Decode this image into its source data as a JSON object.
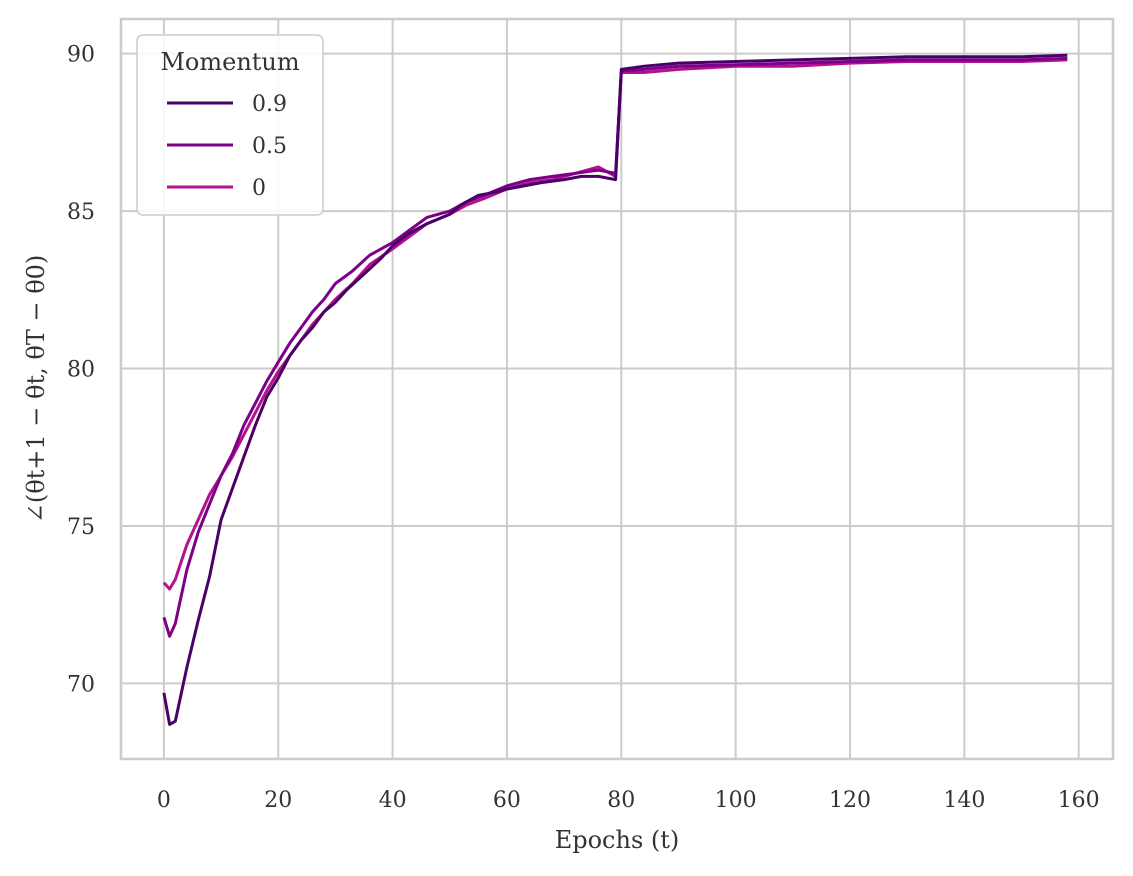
{
  "chart_data": {
    "type": "line",
    "xlabel": "Epochs (t)",
    "ylabel": "∠(θt+1 − θt, θT − θ0)",
    "xlim": [
      -7.5,
      166
    ],
    "ylim": [
      67.6,
      91.1
    ],
    "xticks": [
      0,
      20,
      40,
      60,
      80,
      100,
      120,
      140,
      160
    ],
    "yticks": [
      70,
      75,
      80,
      85,
      90
    ],
    "grid": true,
    "legend": {
      "title": "Momentum",
      "placement": "top-left"
    },
    "series": [
      {
        "name": "0.9",
        "color": "#4b0067",
        "points": [
          [
            0,
            69.7
          ],
          [
            1,
            68.7
          ],
          [
            2,
            68.8
          ],
          [
            4,
            70.5
          ],
          [
            6,
            72.0
          ],
          [
            8,
            73.4
          ],
          [
            10,
            75.2
          ],
          [
            12,
            76.2
          ],
          [
            14,
            77.2
          ],
          [
            16,
            78.2
          ],
          [
            18,
            79.1
          ],
          [
            20,
            79.7
          ],
          [
            22,
            80.4
          ],
          [
            24,
            80.9
          ],
          [
            26,
            81.3
          ],
          [
            28,
            81.8
          ],
          [
            30,
            82.1
          ],
          [
            32,
            82.5
          ],
          [
            35,
            83.0
          ],
          [
            38,
            83.5
          ],
          [
            40,
            83.9
          ],
          [
            43,
            84.3
          ],
          [
            46,
            84.6
          ],
          [
            50,
            84.9
          ],
          [
            52,
            85.2
          ],
          [
            55,
            85.5
          ],
          [
            58,
            85.6
          ],
          [
            60,
            85.7
          ],
          [
            63,
            85.8
          ],
          [
            66,
            85.9
          ],
          [
            70,
            86.0
          ],
          [
            73,
            86.1
          ],
          [
            76,
            86.1
          ],
          [
            79,
            86.0
          ],
          [
            80,
            89.5
          ],
          [
            84,
            89.6
          ],
          [
            90,
            89.7
          ],
          [
            100,
            89.75
          ],
          [
            110,
            89.8
          ],
          [
            120,
            89.85
          ],
          [
            130,
            89.9
          ],
          [
            140,
            89.9
          ],
          [
            150,
            89.9
          ],
          [
            158,
            89.95
          ]
        ]
      },
      {
        "name": "0.5",
        "color": "#7c0088",
        "points": [
          [
            0,
            72.1
          ],
          [
            1,
            71.5
          ],
          [
            2,
            71.9
          ],
          [
            4,
            73.6
          ],
          [
            6,
            74.8
          ],
          [
            8,
            75.7
          ],
          [
            10,
            76.6
          ],
          [
            12,
            77.3
          ],
          [
            14,
            78.2
          ],
          [
            16,
            78.9
          ],
          [
            18,
            79.6
          ],
          [
            20,
            80.2
          ],
          [
            22,
            80.8
          ],
          [
            24,
            81.3
          ],
          [
            26,
            81.8
          ],
          [
            28,
            82.2
          ],
          [
            30,
            82.7
          ],
          [
            33,
            83.1
          ],
          [
            36,
            83.6
          ],
          [
            40,
            84.0
          ],
          [
            43,
            84.4
          ],
          [
            46,
            84.8
          ],
          [
            50,
            85.0
          ],
          [
            53,
            85.3
          ],
          [
            56,
            85.5
          ],
          [
            60,
            85.8
          ],
          [
            64,
            86.0
          ],
          [
            68,
            86.1
          ],
          [
            72,
            86.2
          ],
          [
            76,
            86.3
          ],
          [
            79,
            86.2
          ],
          [
            80,
            89.45
          ],
          [
            84,
            89.5
          ],
          [
            90,
            89.6
          ],
          [
            100,
            89.65
          ],
          [
            110,
            89.7
          ],
          [
            120,
            89.75
          ],
          [
            130,
            89.8
          ],
          [
            140,
            89.8
          ],
          [
            150,
            89.8
          ],
          [
            158,
            89.85
          ]
        ]
      },
      {
        "name": "0",
        "color": "#b4118f",
        "points": [
          [
            0,
            73.2
          ],
          [
            1,
            73.0
          ],
          [
            2,
            73.3
          ],
          [
            4,
            74.4
          ],
          [
            6,
            75.2
          ],
          [
            8,
            76.0
          ],
          [
            10,
            76.6
          ],
          [
            12,
            77.2
          ],
          [
            14,
            77.9
          ],
          [
            16,
            78.6
          ],
          [
            18,
            79.3
          ],
          [
            20,
            79.9
          ],
          [
            22,
            80.4
          ],
          [
            24,
            80.9
          ],
          [
            26,
            81.4
          ],
          [
            28,
            81.8
          ],
          [
            30,
            82.2
          ],
          [
            33,
            82.7
          ],
          [
            36,
            83.3
          ],
          [
            40,
            83.8
          ],
          [
            43,
            84.2
          ],
          [
            46,
            84.6
          ],
          [
            50,
            84.9
          ],
          [
            53,
            85.2
          ],
          [
            56,
            85.4
          ],
          [
            60,
            85.7
          ],
          [
            64,
            85.9
          ],
          [
            68,
            86.0
          ],
          [
            72,
            86.2
          ],
          [
            76,
            86.4
          ],
          [
            79,
            86.1
          ],
          [
            80,
            89.4
          ],
          [
            84,
            89.4
          ],
          [
            90,
            89.5
          ],
          [
            100,
            89.6
          ],
          [
            110,
            89.6
          ],
          [
            120,
            89.7
          ],
          [
            130,
            89.75
          ],
          [
            140,
            89.75
          ],
          [
            150,
            89.75
          ],
          [
            158,
            89.8
          ]
        ]
      }
    ]
  }
}
